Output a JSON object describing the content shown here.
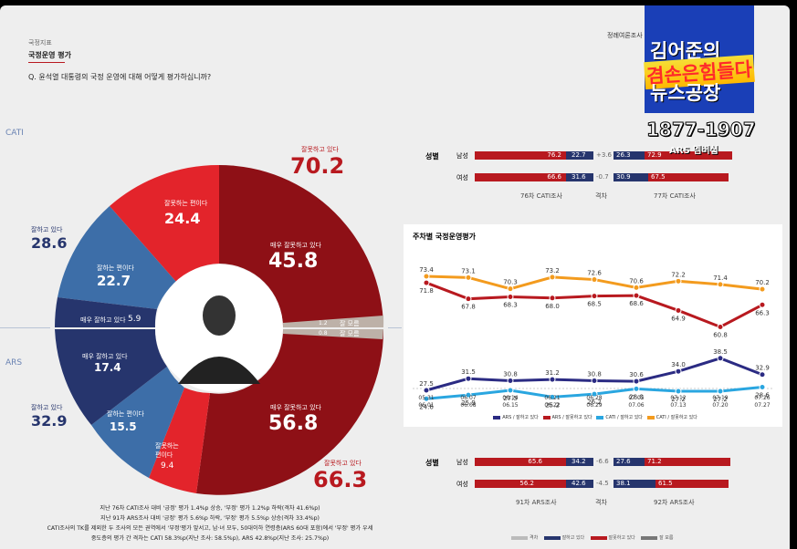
{
  "header": {
    "section": "국정지표",
    "title": "국정운영 평가",
    "question": "Q. 윤석열 대통령의 국정 운영에 대해 어떻게 평가하십니까?",
    "source": "정례여론조사"
  },
  "badge": {
    "line1": "김어준의",
    "line2": "겸손은힘들다",
    "line3": "뉴스공장",
    "members": "1877-1907",
    "members_sub": "ARS 멤버십"
  },
  "labels": {
    "cati": "CATI",
    "ars": "ARS",
    "dont_know_top": "잘 모름",
    "dont_know_bottom": "잘 모름"
  },
  "cati": {
    "bad_total_label": "잘못하고 있다",
    "bad_total": "70.2",
    "somewhat_bad_label": "잘못하는 편이다",
    "somewhat_bad": "24.4",
    "very_bad_label": "매우 잘못하고 있다",
    "very_bad": "45.8",
    "good_total_label": "잘하고 있다",
    "good_total": "28.6",
    "somewhat_good_label": "잘하는 편이다",
    "somewhat_good": "22.7",
    "very_good_label": "매우 잘하고 있다",
    "very_good": "5.9",
    "dont_know": "1.2"
  },
  "ars": {
    "bad_total_label": "잘못하고 있다",
    "bad_total": "66.3",
    "somewhat_bad_label": "잘못하는 편이다",
    "somewhat_bad": "9.4",
    "very_bad_label": "매우 잘못하고 있다",
    "very_bad": "56.8",
    "good_total_label": "잘하고 있다",
    "good_total": "32.9",
    "somewhat_good_label": "잘하는 편이다",
    "somewhat_good": "15.5",
    "very_good_label": "매우 잘하고 있다",
    "very_good": "17.4",
    "dont_know": "0.8"
  },
  "gender_cati": {
    "label": "성별",
    "rows": [
      {
        "name": "남성",
        "prev_bad": "76.2",
        "prev_good": "22.7",
        "diff": "+3.6",
        "cur_good": "26.3",
        "cur_bad": "72.9"
      },
      {
        "name": "여성",
        "prev_bad": "66.6",
        "prev_good": "31.6",
        "diff": "-0.7",
        "cur_good": "30.9",
        "cur_bad": "67.5"
      }
    ],
    "footer_prev": "76차 CATI조사",
    "footer_diff": "격차",
    "footer_cur": "77차 CATI조사"
  },
  "gender_ars": {
    "label": "성별",
    "rows": [
      {
        "name": "남성",
        "prev_bad": "65.6",
        "prev_good": "34.2",
        "diff": "-6.6",
        "cur_good": "27.6",
        "cur_bad": "71.2"
      },
      {
        "name": "여성",
        "prev_bad": "56.2",
        "prev_good": "42.6",
        "diff": "-4.5",
        "cur_good": "38.1",
        "cur_bad": "61.5"
      }
    ],
    "footer_prev": "91차 ARS조사",
    "footer_diff": "격차",
    "footer_cur": "92차 ARS조사"
  },
  "chart_data": {
    "type": "line",
    "title": "주차별 국정운영평가",
    "categories": [
      "05.31 06.01",
      "06.07 06.08",
      "06.14 06.15",
      "06.21 06.22",
      "06.28 06.29",
      "07.05 07.06",
      "07.12 07.13",
      "07.19 07.20",
      "07.26 07.27"
    ],
    "series": [
      {
        "name": "ARS / 잘하고 있다",
        "color": "#2b2b83",
        "values": [
          27.5,
          31.5,
          30.8,
          31.2,
          30.8,
          30.6,
          34.0,
          38.5,
          32.9
        ]
      },
      {
        "name": "ARS / 잘못하고 있다",
        "color": "#b8191f",
        "values": [
          71.8,
          67.8,
          68.3,
          68.0,
          68.5,
          68.6,
          64.9,
          60.8,
          66.3
        ]
      },
      {
        "name": "CATI / 잘하고 있다",
        "color": "#2aa6e0",
        "values": [
          24.6,
          25.9,
          27.5,
          25.2,
          26.2,
          28.0,
          27.2,
          27.2,
          28.6
        ]
      },
      {
        "name": "CATI / 잘못하고 있다",
        "color": "#f39b1e",
        "values": [
          73.4,
          73.1,
          70.3,
          73.2,
          72.6,
          70.6,
          72.2,
          71.4,
          70.2
        ]
      }
    ]
  },
  "notes": [
    "지난 76차 CATI조사 대비 '긍정' 평가 1.4%p 상승, '부정' 평가 1.2%p 하락(격차 41.6%p)",
    "지난 91차 ARS조사 대비 '긍정' 평가 5.6%p 하락, '부정' 평가 5.5%p 상승(격차 33.4%p)",
    "CATI조사의 TK를 제외한 두 조사의 모든 권역에서 '부정'평가 앞서고, 남·녀 모두, 50대이하 연령층(ARS 60대 포함)에서 '부정' 평가 우세",
    "중도층의 평가 간 격차는 CATI 58.3%p(지난 조사: 58.5%p), ARS 42.8%p(지난 조사: 25.7%p)"
  ],
  "bottom_legend": [
    "격차",
    "잘하고 있다",
    "잘못하고 있다",
    "잘 모름"
  ],
  "colors": {
    "red": "#b8191f",
    "dark_red": "#8e1016",
    "bright_red": "#e3242b",
    "blue": "#26356d",
    "mid_blue": "#3d6ea8",
    "light_blue": "#2aa6e0",
    "orange": "#f39b1e"
  }
}
